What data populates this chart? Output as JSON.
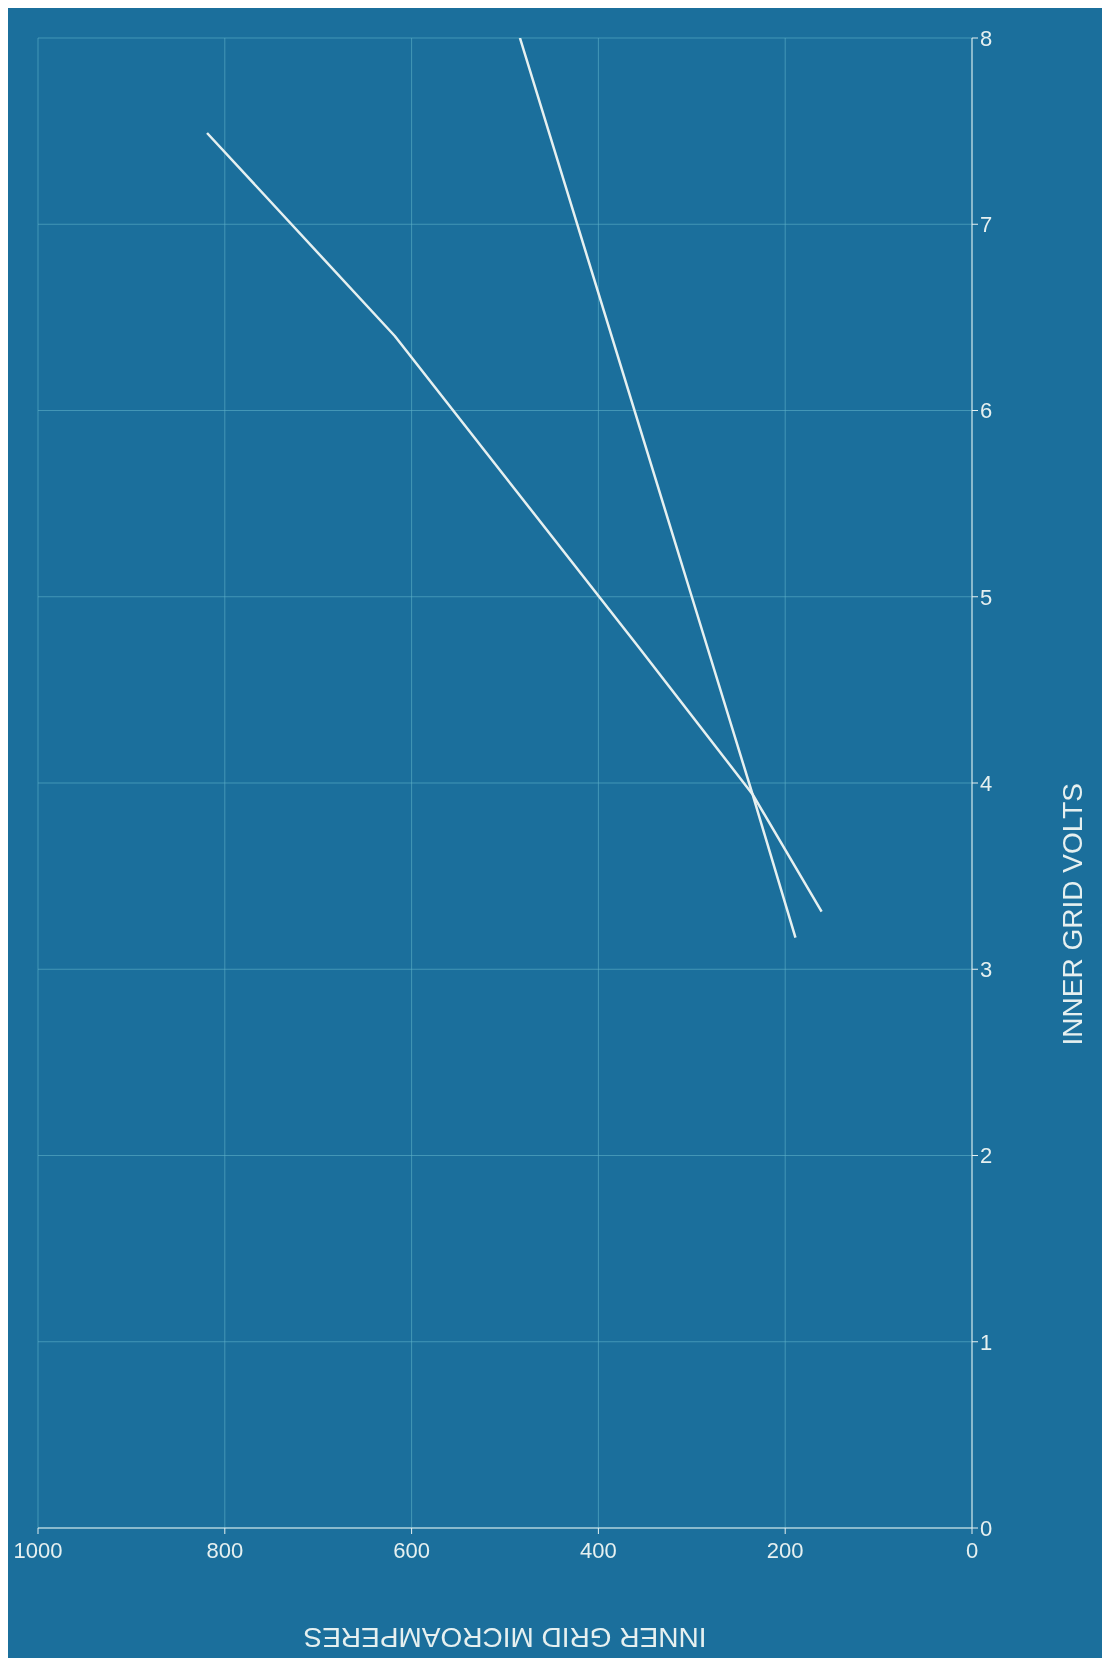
{
  "chart_data": {
    "type": "line",
    "xlabel": "INNER GRID MICROAMPERES",
    "ylabel": "INNER GRID VOLTS",
    "series": [
      {
        "color": "#e6f0f0",
        "x": [
          161,
          235,
          357,
          618,
          819
        ],
        "values": [
          3.31,
          3.94,
          4.73,
          6.4,
          7.49
        ]
      },
      {
        "color": "#e6f0f0",
        "x": [
          189,
          235,
          300,
          484
        ],
        "values": [
          3.17,
          3.94,
          5.0,
          8.0
        ]
      }
    ],
    "xlim": [
      1000,
      0
    ],
    "xticks": [
      0,
      200,
      400,
      600,
      800,
      1000
    ],
    "ylim": [
      0,
      8
    ],
    "yticks": [
      0,
      1,
      2,
      3,
      4,
      5,
      6,
      7,
      8
    ],
    "grid": true,
    "marker": "none",
    "line_style": "solid"
  }
}
